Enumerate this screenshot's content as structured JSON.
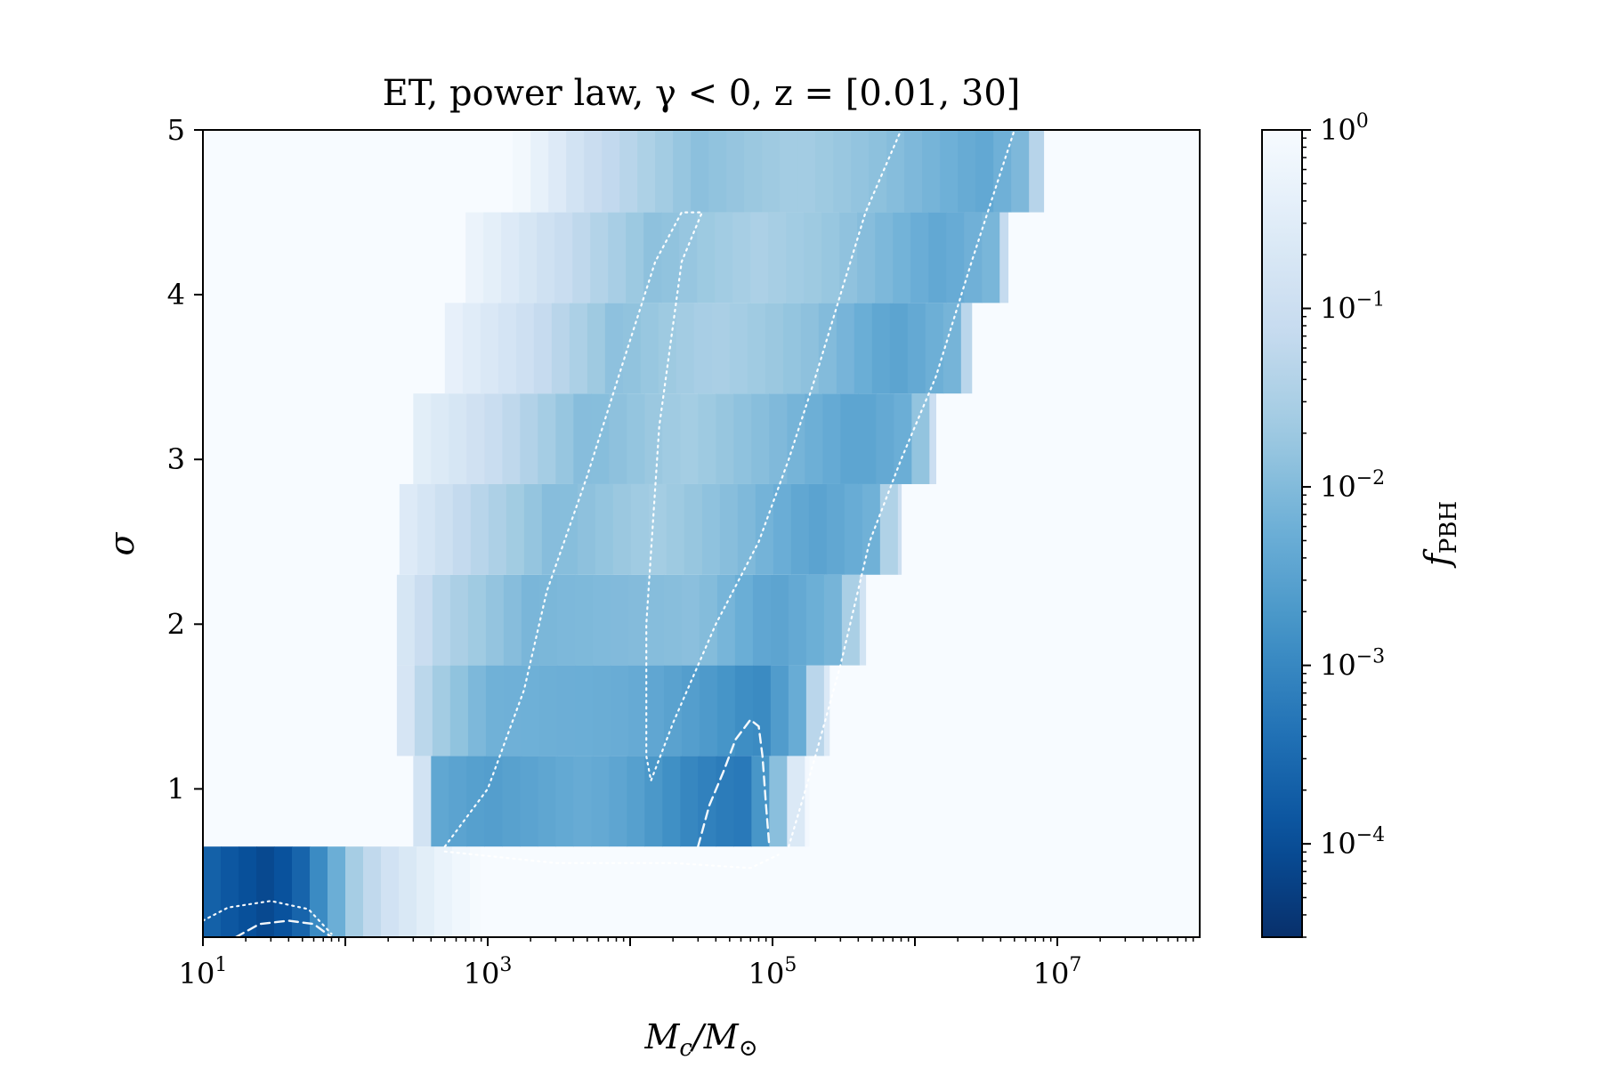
{
  "chart_data": {
    "type": "heatmap",
    "title": "ET, power law, γ < 0, z = [0.01, 30]",
    "xlabel": "M_c/M_⊙",
    "ylabel": "σ",
    "x_scale": "log",
    "xlim": [
      10,
      100000000
    ],
    "ylim": [
      0.1,
      5
    ],
    "x_ticks": [
      {
        "value": 10,
        "base": "10",
        "exp": "1"
      },
      {
        "value": 1000,
        "base": "10",
        "exp": "3"
      },
      {
        "value": 100000,
        "base": "10",
        "exp": "5"
      },
      {
        "value": 10000000,
        "base": "10",
        "exp": "7"
      }
    ],
    "y_ticks": [
      1,
      2,
      3,
      4,
      5
    ],
    "colorbar": {
      "label": "f_PBH",
      "scale": "log",
      "range": [
        3e-05,
        1
      ],
      "colormap": "Blues_r",
      "ticks": [
        {
          "value": 1,
          "base": "10",
          "exp": "0"
        },
        {
          "value": 0.1,
          "base": "10",
          "exp": "−1"
        },
        {
          "value": 0.01,
          "base": "10",
          "exp": "−2"
        },
        {
          "value": 0.001,
          "base": "10",
          "exp": "−3"
        },
        {
          "value": 0.0001,
          "base": "10",
          "exp": "−4"
        }
      ]
    },
    "rows": [
      {
        "sigma": [
          0.1,
          0.65
        ],
        "mass_range": [
          10,
          880
        ],
        "log_f": [
          [
            10,
            -3.6
          ],
          [
            17,
            -3.9
          ],
          [
            28,
            -4.1
          ],
          [
            45,
            -3.8
          ],
          [
            75,
            -2.6
          ],
          [
            120,
            -1.5
          ],
          [
            200,
            -0.9
          ],
          [
            400,
            -0.4
          ],
          [
            880,
            0
          ]
        ]
      },
      {
        "sigma": [
          0.65,
          1.2
        ],
        "mass_range": [
          300,
          180000
        ],
        "log_f": [
          [
            300,
            0
          ],
          [
            450,
            -2.4
          ],
          [
            1000,
            -2.6
          ],
          [
            5000,
            -2.3
          ],
          [
            10000,
            -2.5
          ],
          [
            25000,
            -3.0
          ],
          [
            60000,
            -3.3
          ],
          [
            100000,
            -2.4
          ],
          [
            130000,
            -1.0
          ],
          [
            180000,
            0
          ]
        ]
      },
      {
        "sigma": [
          1.2,
          1.75
        ],
        "mass_range": [
          230,
          250000
        ],
        "log_f": [
          [
            230,
            -0.5
          ],
          [
            400,
            -1.5
          ],
          [
            1000,
            -2.2
          ],
          [
            10000,
            -2.3
          ],
          [
            40000,
            -2.7
          ],
          [
            80000,
            -3.0
          ],
          [
            150000,
            -2.3
          ],
          [
            250000,
            -0.5
          ]
        ]
      },
      {
        "sigma": [
          1.75,
          2.3
        ],
        "mass_range": [
          230,
          450000
        ],
        "log_f": [
          [
            230,
            -0.6
          ],
          [
            500,
            -1.4
          ],
          [
            2000,
            -2.1
          ],
          [
            10000,
            -2.0
          ],
          [
            30000,
            -1.9
          ],
          [
            100000,
            -2.5
          ],
          [
            300000,
            -2.1
          ],
          [
            450000,
            -0.7
          ]
        ]
      },
      {
        "sigma": [
          2.3,
          2.85
        ],
        "mass_range": [
          240,
          800000
        ],
        "log_f": [
          [
            240,
            -0.5
          ],
          [
            700,
            -1.2
          ],
          [
            3000,
            -2.0
          ],
          [
            15000,
            -1.6
          ],
          [
            60000,
            -2.0
          ],
          [
            200000,
            -2.5
          ],
          [
            500000,
            -2.2
          ],
          [
            800000,
            -0.9
          ]
        ]
      },
      {
        "sigma": [
          2.85,
          3.4
        ],
        "mass_range": [
          300,
          1400000
        ],
        "log_f": [
          [
            300,
            -0.4
          ],
          [
            1000,
            -1.0
          ],
          [
            5000,
            -2.0
          ],
          [
            25000,
            -1.6
          ],
          [
            100000,
            -2.0
          ],
          [
            400000,
            -2.5
          ],
          [
            1000000,
            -2.2
          ],
          [
            1400000,
            -0.8
          ]
        ]
      },
      {
        "sigma": [
          3.4,
          3.95
        ],
        "mass_range": [
          500,
          2500000
        ],
        "log_f": [
          [
            500,
            -0.3
          ],
          [
            2000,
            -1.0
          ],
          [
            8000,
            -1.9
          ],
          [
            40000,
            -1.5
          ],
          [
            200000,
            -1.9
          ],
          [
            700000,
            -2.5
          ],
          [
            2000000,
            -2.1
          ],
          [
            2500000,
            -0.8
          ]
        ]
      },
      {
        "sigma": [
          3.95,
          4.5
        ],
        "mass_range": [
          700,
          4500000
        ],
        "log_f": [
          [
            700,
            -0.2
          ],
          [
            3000,
            -1.0
          ],
          [
            15000,
            -1.9
          ],
          [
            80000,
            -1.5
          ],
          [
            300000,
            -1.8
          ],
          [
            1500000,
            -2.4
          ],
          [
            3500000,
            -2.1
          ],
          [
            4500000,
            -0.8
          ]
        ]
      },
      {
        "sigma": [
          4.5,
          5.05
        ],
        "mass_range": [
          1500,
          8000000
        ],
        "log_f": [
          [
            1500,
            0
          ],
          [
            5000,
            -1.0
          ],
          [
            30000,
            -1.9
          ],
          [
            150000,
            -1.6
          ],
          [
            600000,
            -1.9
          ],
          [
            3000000,
            -2.4
          ],
          [
            6000000,
            -2.0
          ],
          [
            8000000,
            -0.9
          ]
        ]
      }
    ],
    "contours": [
      {
        "style": "dotted",
        "points": [
          [
            10,
            0.2
          ],
          [
            15,
            0.28
          ],
          [
            30,
            0.32
          ],
          [
            55,
            0.27
          ],
          [
            80,
            0.12
          ]
        ]
      },
      {
        "style": "dashed",
        "points": [
          [
            17,
            0.1
          ],
          [
            25,
            0.18
          ],
          [
            40,
            0.2
          ],
          [
            60,
            0.18
          ],
          [
            80,
            0.1
          ]
        ]
      },
      {
        "style": "dotted",
        "points": [
          [
            500,
            0.65
          ],
          [
            1000,
            1.0
          ],
          [
            1800,
            1.6
          ],
          [
            2600,
            2.2
          ],
          [
            5000,
            2.9
          ],
          [
            9000,
            3.6
          ],
          [
            15000,
            4.2
          ],
          [
            23000,
            4.5
          ],
          [
            32000,
            4.5
          ],
          [
            23000,
            4.2
          ],
          [
            16000,
            3.2
          ],
          [
            13000,
            2.0
          ],
          [
            13000,
            1.2
          ],
          [
            14000,
            1.05
          ],
          [
            20000,
            1.4
          ],
          [
            40000,
            2.0
          ],
          [
            80000,
            2.5
          ],
          [
            130000,
            3.0
          ],
          [
            200000,
            3.5
          ],
          [
            300000,
            4.0
          ],
          [
            450000,
            4.5
          ],
          [
            800000,
            5.0
          ]
        ]
      },
      {
        "style": "dotted",
        "points": [
          [
            130000,
            0.65
          ],
          [
            200000,
            1.2
          ],
          [
            300000,
            1.75
          ],
          [
            480000,
            2.5
          ],
          [
            800000,
            3.0
          ],
          [
            1400000,
            3.5
          ],
          [
            2500000,
            4.2
          ],
          [
            5000000,
            5.0
          ]
        ]
      },
      {
        "style": "dotted",
        "points": [
          [
            500,
            0.62
          ],
          [
            3000,
            0.55
          ],
          [
            20000,
            0.55
          ],
          [
            70000,
            0.52
          ],
          [
            110000,
            0.6
          ]
        ]
      },
      {
        "style": "dashed",
        "points": [
          [
            30000,
            0.65
          ],
          [
            36000,
            0.9
          ],
          [
            45000,
            1.1
          ],
          [
            55000,
            1.3
          ],
          [
            70000,
            1.42
          ],
          [
            80000,
            1.38
          ],
          [
            85000,
            1.2
          ],
          [
            90000,
            0.9
          ],
          [
            95000,
            0.65
          ]
        ]
      }
    ]
  }
}
